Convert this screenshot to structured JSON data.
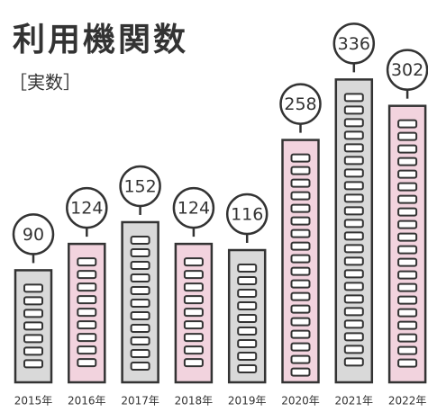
{
  "chart_data": {
    "type": "bar",
    "title": "利用機関数",
    "subtitle": "［実数］",
    "categories": [
      "2015年",
      "2016年",
      "2017年",
      "2018年",
      "2019年",
      "2020年",
      "2021年",
      "2022年"
    ],
    "values": [
      90,
      124,
      152,
      124,
      116,
      258,
      336,
      302
    ],
    "colors": [
      "#d9d9d9",
      "#f2d3de",
      "#d9d9d9",
      "#f2d3de",
      "#d9d9d9",
      "#f2d3de",
      "#d9d9d9",
      "#f2d3de"
    ]
  }
}
